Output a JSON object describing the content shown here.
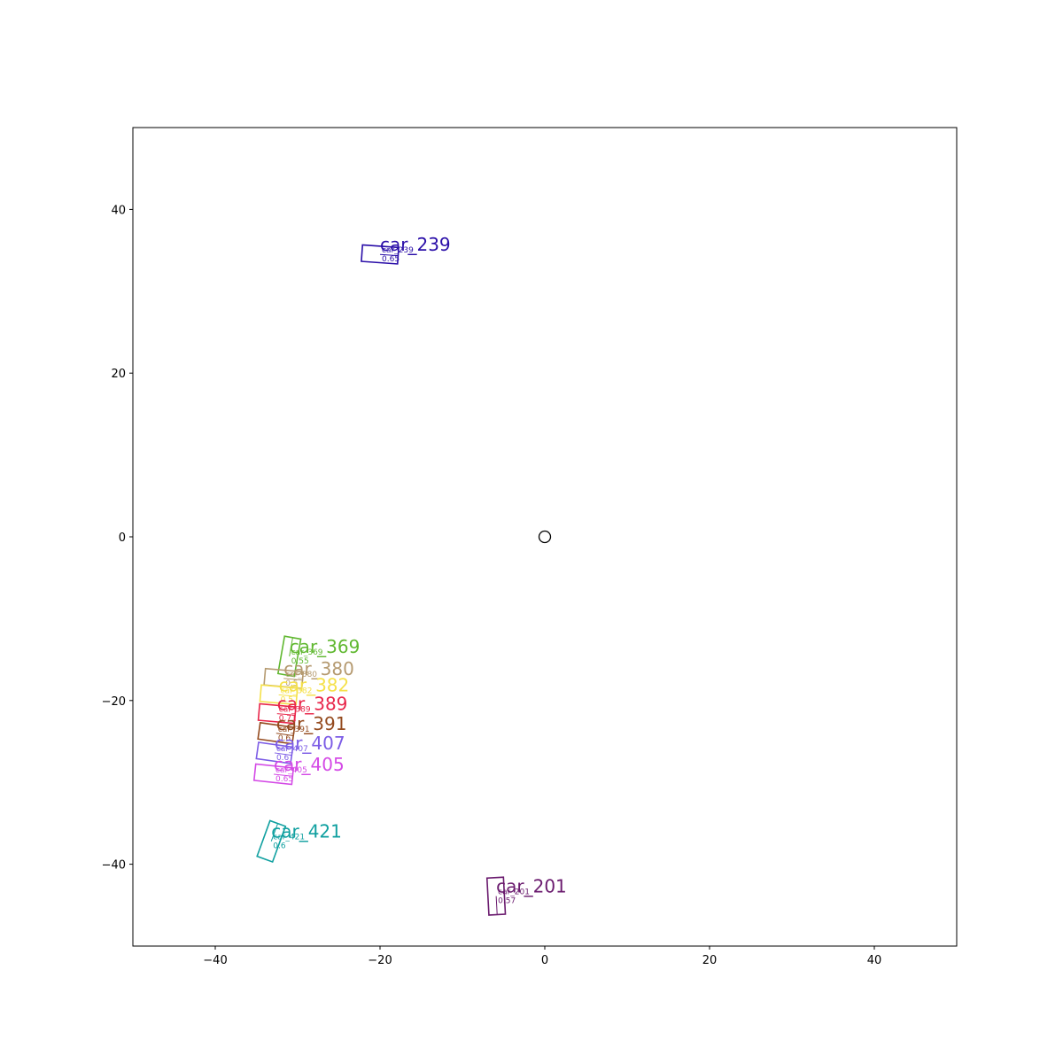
{
  "chart_data": {
    "type": "scatter",
    "title": "",
    "xlabel": "",
    "ylabel": "",
    "xlim": [
      -50,
      50
    ],
    "ylim": [
      -50,
      50
    ],
    "xticks": [
      -40,
      -20,
      0,
      20,
      40
    ],
    "yticks": [
      -40,
      -20,
      0,
      20,
      40
    ],
    "xtick_labels": [
      "−40",
      "−20",
      "0",
      "20",
      "40"
    ],
    "ytick_labels": [
      "−40",
      "−20",
      "0",
      "20",
      "40"
    ],
    "grid": false,
    "ego": {
      "x": 0,
      "y": 0
    },
    "objects": [
      {
        "label": "car_239",
        "small_label": "car_239",
        "score": "0.65",
        "color": "#2a0ea8",
        "x": -20.0,
        "y": 34.5,
        "length": 4.4,
        "width": 2.0,
        "heading_deg": -4
      },
      {
        "label": "car_369",
        "small_label": "car_369",
        "score": "0.55",
        "color": "#60b830",
        "x": -31.0,
        "y": -14.6,
        "length": 4.6,
        "width": 2.0,
        "heading_deg": 80
      },
      {
        "label": "car_380",
        "small_label": "car_380",
        "score": "0.5",
        "color": "#b59a70",
        "x": -31.7,
        "y": -17.3,
        "length": 4.6,
        "width": 2.0,
        "heading_deg": -5
      },
      {
        "label": "car_382",
        "small_label": "car_382",
        "score": "0.5",
        "color": "#f5e14a",
        "x": -32.3,
        "y": -19.3,
        "length": 4.4,
        "width": 2.0,
        "heading_deg": -5
      },
      {
        "label": "car_389",
        "small_label": "car_389",
        "score": "0.71",
        "color": "#e8264a",
        "x": -32.5,
        "y": -21.6,
        "length": 4.4,
        "width": 2.0,
        "heading_deg": -5
      },
      {
        "label": "car_391",
        "small_label": "car_391",
        "score": "0.6",
        "color": "#944a1e",
        "x": -32.6,
        "y": -24.0,
        "length": 4.2,
        "width": 2.0,
        "heading_deg": -8
      },
      {
        "label": "car_407",
        "small_label": "car_407",
        "score": "0.6",
        "color": "#7c5ce6",
        "x": -32.8,
        "y": -26.4,
        "length": 4.2,
        "width": 2.0,
        "heading_deg": -8
      },
      {
        "label": "car_405",
        "small_label": "car_405",
        "score": "0.65",
        "color": "#d44ae6",
        "x": -32.9,
        "y": -29.0,
        "length": 4.6,
        "width": 2.0,
        "heading_deg": -6
      },
      {
        "label": "car_421",
        "small_label": "car_421",
        "score": "0.6",
        "color": "#10a0a0",
        "x": -33.2,
        "y": -37.2,
        "length": 4.6,
        "width": 2.0,
        "heading_deg": 70
      },
      {
        "label": "car_201",
        "small_label": "car_201",
        "score": "0.57",
        "color": "#6a1a6e",
        "x": -5.9,
        "y": -43.9,
        "length": 4.5,
        "width": 2.0,
        "heading_deg": -87
      }
    ]
  }
}
